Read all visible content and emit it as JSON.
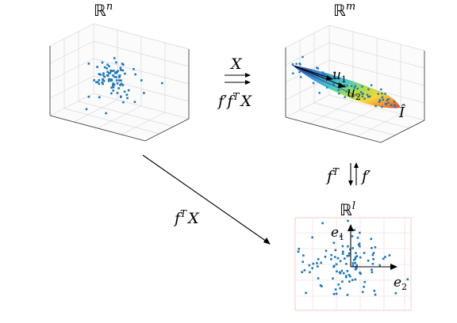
{
  "labels": {
    "space_n": "ℝ",
    "space_n_sup": "n",
    "space_m": "ℝ",
    "space_m_sup": "m",
    "space_l": "ℝ",
    "space_l_sup": "l",
    "map_top": "X",
    "map_bottom_f": "f",
    "map_bottom_prime": "′",
    "map_bottom_f2": "f",
    "map_bottom_T": "T",
    "map_bottom_X": "X",
    "vert_fT": "f",
    "vert_fT_sup": "T",
    "vert_fprime": "f′",
    "diag_f": "f",
    "diag_T": "T",
    "diag_X": "X",
    "u1": "u",
    "u1_sub": "1",
    "u2": "u",
    "u2_sub": "2",
    "I_hat": "Î",
    "e1": "e",
    "e1_sub": "1",
    "e2": "e",
    "e2_sub": "2"
  },
  "colors": {
    "points": "#1f77b4",
    "arrows": "#000000",
    "grid": "#d9d9d9"
  },
  "panels": {
    "cube_n": {
      "points": 90
    },
    "cube_m": {
      "points": 70
    },
    "plane_l": {
      "points": 110
    }
  }
}
